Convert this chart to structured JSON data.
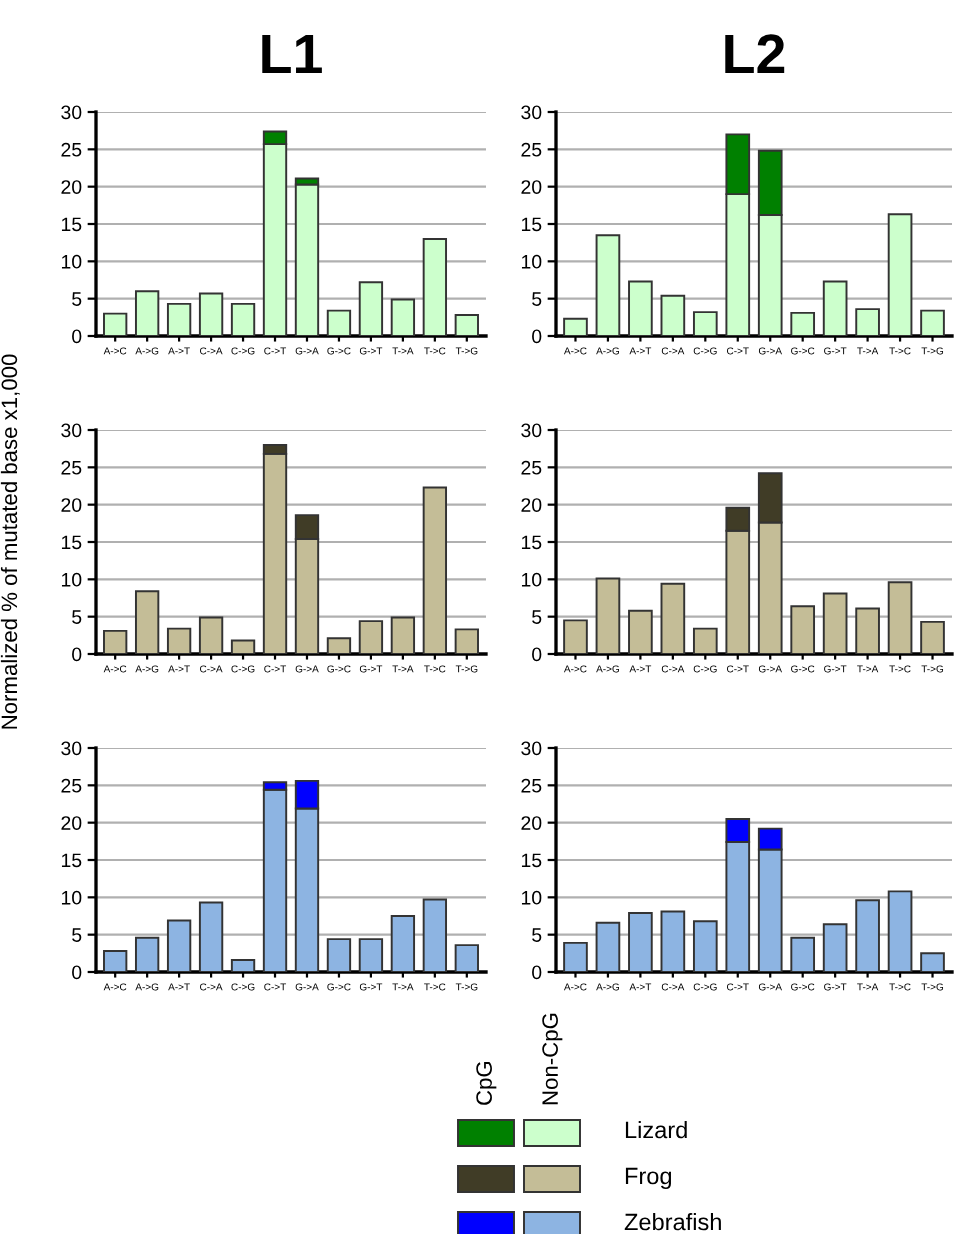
{
  "chart_data": [
    {
      "type": "bar",
      "title": "L1",
      "stacked": true,
      "categories": [
        "A->C",
        "A->G",
        "A->T",
        "C->A",
        "C->G",
        "C->T",
        "G->A",
        "G->C",
        "G->T",
        "T->A",
        "T->C",
        "T->G"
      ],
      "ylim": [
        0,
        30
      ],
      "yticks": [
        0,
        5,
        10,
        15,
        20,
        25,
        30
      ],
      "grid": "y",
      "series": [
        {
          "color": "#ccffcc",
          "values": [
            3,
            6,
            4.3,
            5.7,
            4.3,
            25.7,
            20.3,
            3.4,
            7.2,
            4.9,
            13,
            2.8
          ]
        },
        {
          "color": "#008000",
          "values": [
            null,
            null,
            null,
            null,
            null,
            1.7,
            0.8,
            null,
            null,
            null,
            null,
            null
          ]
        }
      ]
    },
    {
      "type": "bar",
      "title": "L2",
      "stacked": true,
      "categories": [
        "A->C",
        "A->G",
        "A->T",
        "C->A",
        "C->G",
        "C->T",
        "G->A",
        "G->C",
        "G->T",
        "T->A",
        "T->C",
        "T->G"
      ],
      "ylim": [
        0,
        30
      ],
      "yticks": [
        0,
        5,
        10,
        15,
        20,
        25,
        30
      ],
      "grid": "y",
      "series": [
        {
          "color": "#ccffcc",
          "values": [
            2.3,
            13.5,
            7.3,
            5.4,
            3.2,
            19,
            16.2,
            3.1,
            7.3,
            3.6,
            16.3,
            3.4
          ]
        },
        {
          "color": "#008000",
          "values": [
            null,
            null,
            null,
            null,
            null,
            8,
            8.6,
            null,
            null,
            null,
            null,
            null
          ]
        }
      ]
    },
    {
      "type": "bar",
      "ylabel": "Normalized % of mutated base x1,000",
      "stacked": true,
      "categories": [
        "A->C",
        "A->G",
        "A->T",
        "C->A",
        "C->G",
        "C->T",
        "G->A",
        "G->C",
        "G->T",
        "T->A",
        "T->C",
        "T->G"
      ],
      "ylim": [
        0,
        30
      ],
      "yticks": [
        0,
        5,
        10,
        15,
        20,
        25,
        30
      ],
      "grid": "y",
      "series": [
        {
          "color": "#c4bd97",
          "values": [
            3.1,
            8.4,
            3.4,
            4.9,
            1.8,
            26.8,
            15.4,
            2.1,
            4.4,
            4.9,
            22.3,
            3.3
          ]
        },
        {
          "color": "#403c26",
          "values": [
            null,
            null,
            null,
            null,
            null,
            1.2,
            3.2,
            null,
            null,
            null,
            null,
            null
          ]
        }
      ]
    },
    {
      "type": "bar",
      "stacked": true,
      "categories": [
        "A->C",
        "A->G",
        "A->T",
        "C->A",
        "C->G",
        "C->T",
        "G->A",
        "G->C",
        "G->T",
        "T->A",
        "T->C",
        "T->G"
      ],
      "ylim": [
        0,
        30
      ],
      "yticks": [
        0,
        5,
        10,
        15,
        20,
        25,
        30
      ],
      "grid": "y",
      "series": [
        {
          "color": "#c4bd97",
          "values": [
            4.5,
            10.1,
            5.8,
            9.4,
            3.4,
            16.5,
            17.6,
            6.4,
            8.1,
            6.1,
            9.6,
            4.3
          ]
        },
        {
          "color": "#403c26",
          "values": [
            null,
            null,
            null,
            null,
            null,
            3.1,
            6.6,
            null,
            null,
            null,
            null,
            null
          ]
        }
      ]
    },
    {
      "type": "bar",
      "stacked": true,
      "categories": [
        "A->C",
        "A->G",
        "A->T",
        "C->A",
        "C->G",
        "C->T",
        "G->A",
        "G->C",
        "G->T",
        "T->A",
        "T->C",
        "T->G"
      ],
      "ylim": [
        0,
        30
      ],
      "yticks": [
        0,
        5,
        10,
        15,
        20,
        25,
        30
      ],
      "grid": "y",
      "series": [
        {
          "color": "#8db4e2",
          "values": [
            2.8,
            4.6,
            6.9,
            9.3,
            1.6,
            24.4,
            21.9,
            4.4,
            4.4,
            7.5,
            9.7,
            3.6
          ]
        },
        {
          "color": "#0000ff",
          "values": [
            null,
            null,
            null,
            null,
            null,
            1,
            3.7,
            null,
            null,
            null,
            null,
            null
          ]
        }
      ]
    },
    {
      "type": "bar",
      "stacked": true,
      "categories": [
        "A->C",
        "A->G",
        "A->T",
        "C->A",
        "C->G",
        "C->T",
        "G->A",
        "G->C",
        "G->T",
        "T->A",
        "T->C",
        "T->G"
      ],
      "ylim": [
        0,
        30
      ],
      "yticks": [
        0,
        5,
        10,
        15,
        20,
        25,
        30
      ],
      "grid": "y",
      "series": [
        {
          "color": "#8db4e2",
          "values": [
            3.9,
            6.6,
            7.9,
            8.1,
            6.8,
            17.4,
            16.4,
            4.6,
            6.4,
            9.6,
            10.8,
            2.5
          ]
        },
        {
          "color": "#0000ff",
          "values": [
            null,
            null,
            null,
            null,
            null,
            3.1,
            2.8,
            null,
            null,
            null,
            null,
            null
          ]
        }
      ]
    },
    {
      "type": "other",
      "annotations": [
        "CpG",
        "Non-CpG",
        "Lizard",
        "Frog",
        "Zebrafish"
      ]
    }
  ]
}
